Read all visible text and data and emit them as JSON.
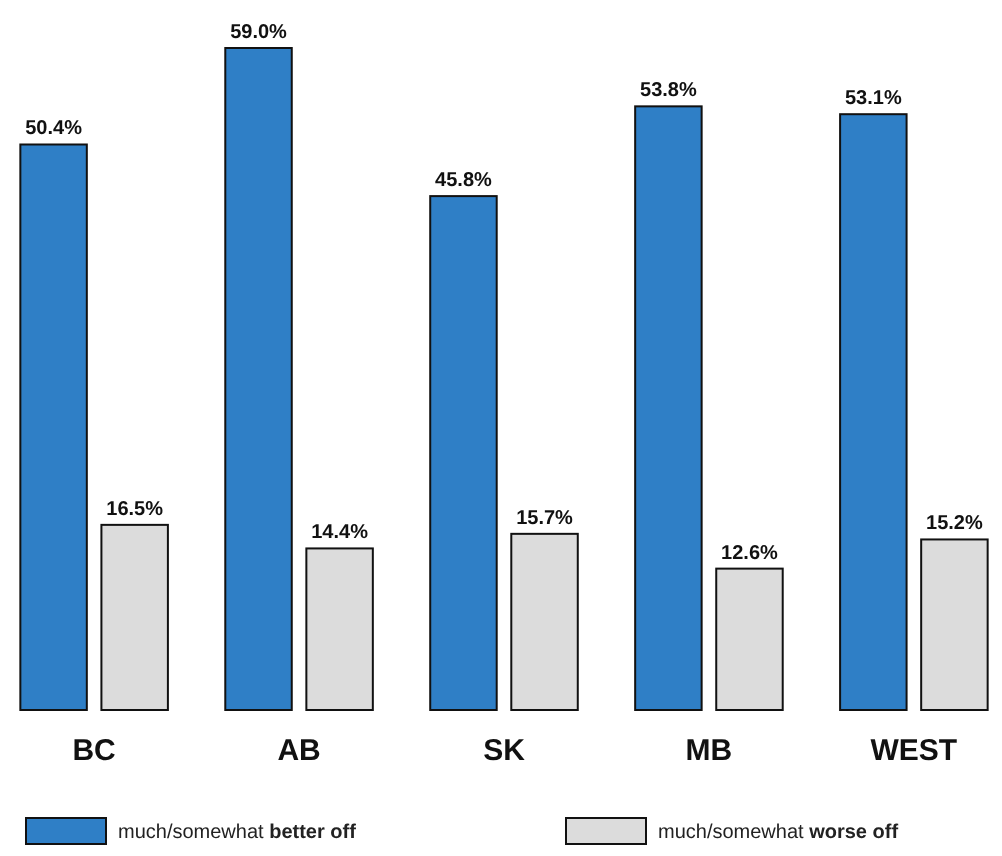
{
  "chart_data": {
    "type": "bar",
    "categories": [
      "BC",
      "AB",
      "SK",
      "MB",
      "WEST"
    ],
    "series": [
      {
        "name": "much/somewhat better off",
        "color": "#2f7fc6",
        "values": [
          50.4,
          59.0,
          45.8,
          53.8,
          53.1
        ],
        "value_labels": [
          "50.4%",
          "59.0%",
          "45.8%",
          "53.8%",
          "53.1%"
        ]
      },
      {
        "name": "much/somewhat worse off",
        "color": "#dcdcdc",
        "values": [
          16.5,
          14.4,
          15.7,
          12.6,
          15.2
        ],
        "value_labels": [
          "16.5%",
          "14.4%",
          "15.7%",
          "12.6%",
          "15.2%"
        ]
      }
    ],
    "legend": "bottom"
  }
}
